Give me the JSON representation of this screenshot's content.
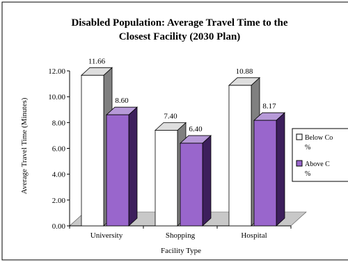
{
  "chart_data": {
    "type": "bar",
    "title_lines": [
      "Disabled Population: Average Travel Time to the",
      "Closest Facility (2030 Plan)"
    ],
    "xlabel": "Facility Type",
    "ylabel": "Average Travel Time (Minutes)",
    "categories": [
      "University",
      "Shopping",
      "Hospital"
    ],
    "ylim": [
      0,
      12
    ],
    "yticks": [
      "0.00",
      "2.00",
      "4.00",
      "6.00",
      "8.00",
      "10.00",
      "12.00"
    ],
    "series": [
      {
        "name": "Below Co %",
        "legend_lines": [
          "Below Co",
          "%"
        ],
        "values": [
          11.66,
          7.4,
          10.88
        ],
        "labels": [
          "11.66",
          "7.40",
          "10.88"
        ]
      },
      {
        "name": "Above C %",
        "legend_lines": [
          "Above C",
          "%"
        ],
        "values": [
          8.6,
          6.4,
          8.17
        ],
        "labels": [
          "8.60",
          "6.40",
          "8.17"
        ]
      }
    ],
    "grid": false,
    "legend_position": "right",
    "style": "3d-column"
  },
  "colors": {
    "series1_front": "#ffffff",
    "series1_side": "#808080",
    "series1_top": "#dedede",
    "series2_front": "#9966cc",
    "series2_side": "#3d1f5c",
    "series2_top": "#b79ad8",
    "floor": "#c8c8c8"
  }
}
